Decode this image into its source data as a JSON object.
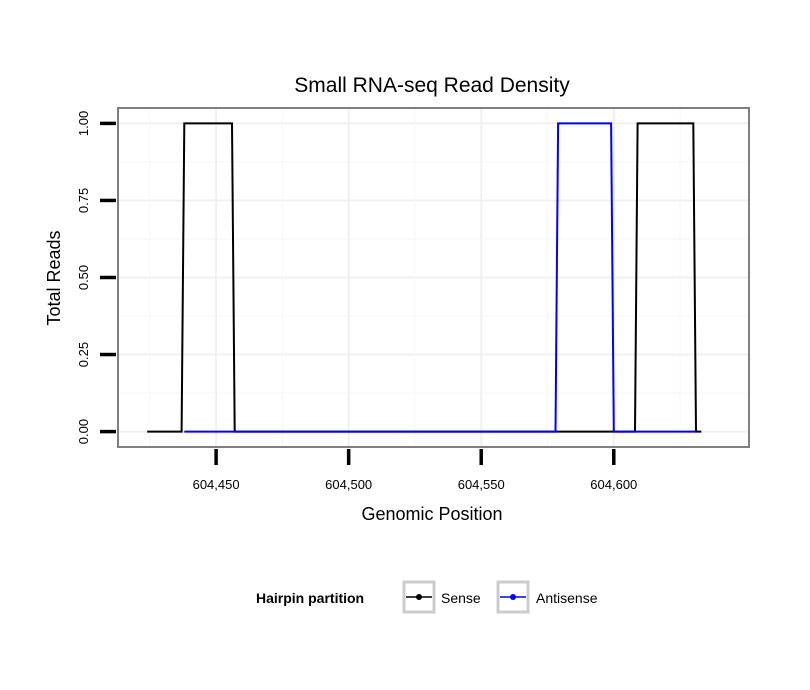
{
  "chart_data": {
    "type": "line",
    "title": "Small RNA-seq Read Density",
    "xlabel": "Genomic Position",
    "ylabel": "Total Reads",
    "xlim": [
      604413,
      604651
    ],
    "ylim": [
      -0.05,
      1.05
    ],
    "xticks": [
      604450,
      604500,
      604550,
      604600
    ],
    "xtick_labels": [
      "604,450",
      "604,500",
      "604,550",
      "604,600"
    ],
    "yticks": [
      0,
      0.25,
      0.5,
      0.75,
      1
    ],
    "ytick_labels": [
      "0.00",
      "0.25",
      "0.50",
      "0.75",
      "1.00"
    ],
    "grid": true,
    "legend": {
      "title": "Hairpin partition",
      "position": "bottom"
    },
    "series": [
      {
        "name": "Sense",
        "color": "#000000",
        "x": [
          604424,
          604437,
          604438,
          604456,
          604457,
          604608,
          604609,
          604630,
          604631,
          604633
        ],
        "y": [
          0,
          0,
          1,
          1,
          0,
          0,
          1,
          1,
          0,
          0
        ]
      },
      {
        "name": "Antisense",
        "color": "#0000ff",
        "x": [
          604438,
          604457,
          604578,
          604579,
          604599,
          604600,
          604609,
          604631
        ],
        "y": [
          0,
          0,
          0,
          1,
          1,
          0,
          0,
          0
        ]
      }
    ]
  }
}
